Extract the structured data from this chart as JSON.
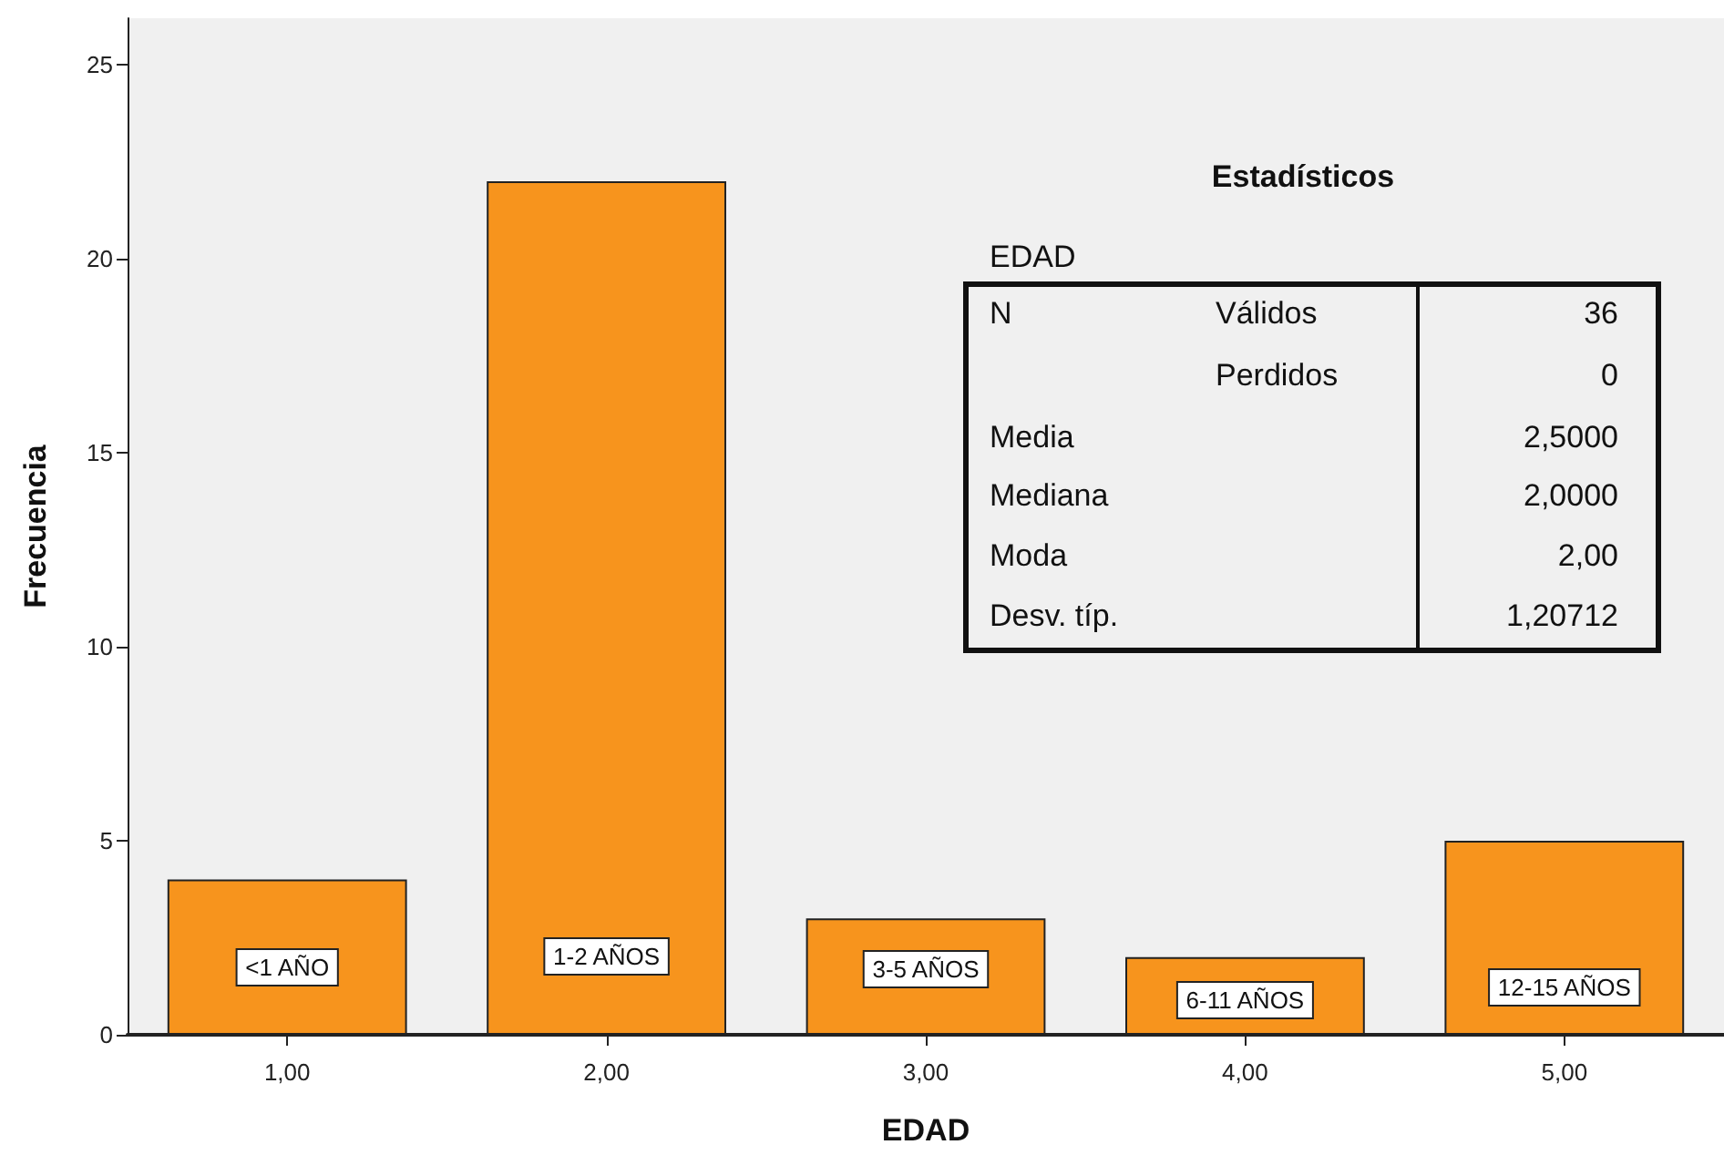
{
  "chart_data": {
    "type": "bar",
    "xlabel": "EDAD",
    "ylabel": "Frecuencia",
    "categories": [
      "1,00",
      "2,00",
      "3,00",
      "4,00",
      "5,00"
    ],
    "values": [
      4,
      22,
      3,
      2,
      5
    ],
    "color": "#f7941d",
    "ylim": [
      0,
      26.2
    ],
    "yticks": [
      0,
      5,
      10,
      15,
      20,
      25
    ],
    "grid": false,
    "annotations": [
      "<1 AÑO",
      "1-2 AÑOS",
      "3-5 AÑOS",
      "6-11 AÑOS",
      "12-15 AÑOS",
      "Estadísticos",
      "EDAD",
      "N",
      "Válidos",
      "36",
      "Perdidos",
      "0",
      "Media",
      "2,5000",
      "Mediana",
      "2,0000",
      "Moda",
      "2,00",
      "Desv. típ.",
      "1,20712"
    ]
  }
}
